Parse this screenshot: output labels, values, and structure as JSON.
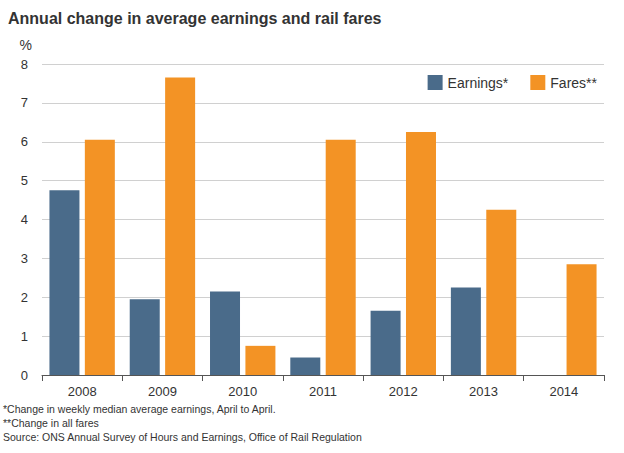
{
  "chart_data": {
    "type": "bar",
    "title": "Annual change in average earnings and rail fares",
    "ylabel": "%",
    "categories": [
      "2008",
      "2009",
      "2010",
      "2011",
      "2012",
      "2013",
      "2014"
    ],
    "series": [
      {
        "name": "Earnings*",
        "color": "#4a6b8a",
        "values": [
          4.75,
          1.95,
          2.15,
          0.45,
          1.65,
          2.25,
          null
        ]
      },
      {
        "name": "Fares**",
        "color": "#f39325",
        "values": [
          6.05,
          7.65,
          0.75,
          6.05,
          6.25,
          4.25,
          2.85
        ]
      }
    ],
    "ylim": [
      0,
      8
    ],
    "yticks": [
      0,
      1,
      2,
      3,
      4,
      5,
      6,
      7,
      8
    ],
    "grid": true,
    "legend": "top-right",
    "annotations": [
      "*Change in weekly median average earnings, April to April.",
      "**Change in all fares",
      "Source: ONS Annual Survey of Hours and Earnings, Office of Rail Regulation"
    ]
  }
}
